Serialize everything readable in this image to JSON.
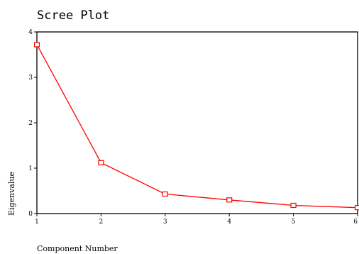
{
  "chart_data": {
    "type": "line",
    "title": "Scree Plot",
    "xlabel": "Component Number",
    "ylabel": "Eigenvalue",
    "x": [
      1,
      2,
      3,
      4,
      5,
      6
    ],
    "y": [
      3.72,
      1.12,
      0.43,
      0.3,
      0.18,
      0.13
    ],
    "xlim": [
      1,
      6
    ],
    "ylim": [
      0,
      4
    ],
    "xticks": [
      "1",
      "2",
      "3",
      "4",
      "5",
      "6"
    ],
    "yticks": [
      "0",
      "1",
      "2",
      "3",
      "4"
    ],
    "grid": false,
    "marker": "square",
    "line_color": "#ff0000",
    "axis_color": "#000000",
    "background": "#ffffff"
  }
}
